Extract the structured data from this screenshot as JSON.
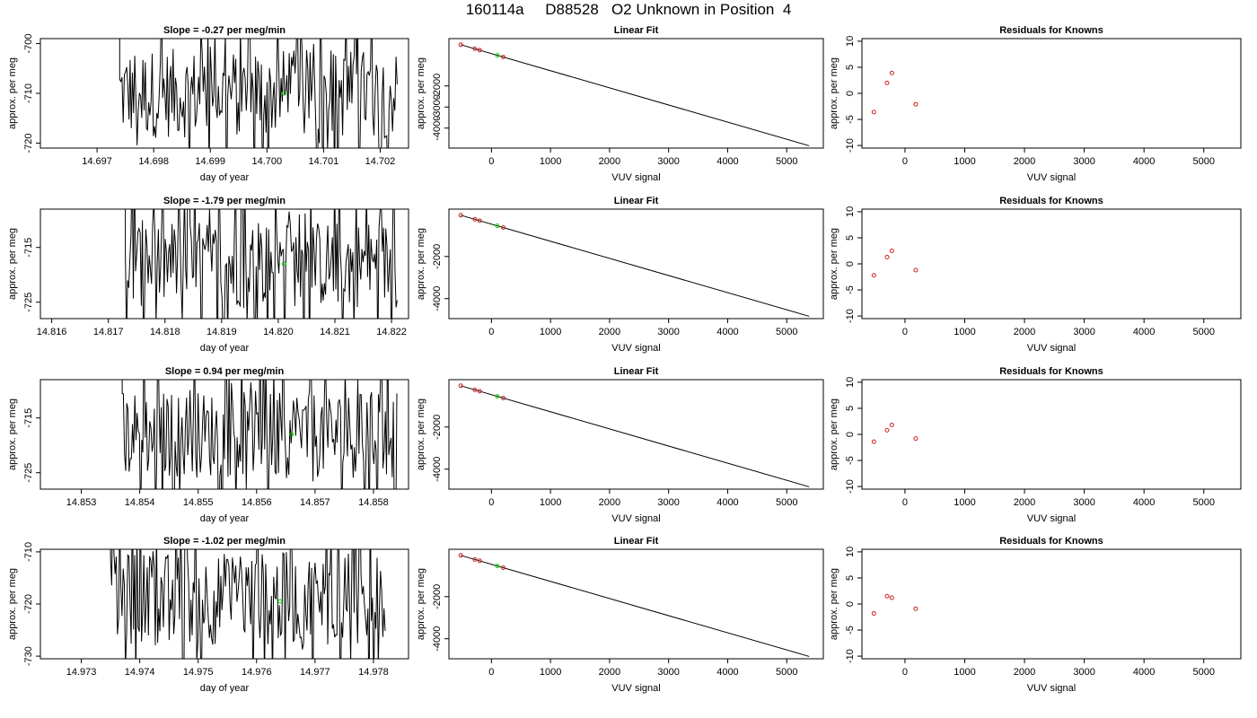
{
  "figure": {
    "title": "160114a     D88528   O2 Unknown in Position  4"
  },
  "colors": {
    "axis": "#000000",
    "line": "#000000",
    "unknown_point": "#00cc00",
    "known_point": "#cc2222"
  },
  "chart_data": [
    {
      "row": 1,
      "panel": "time-series",
      "type": "line",
      "title": "Slope =  -0.27  per meg/min",
      "xlabel": "day of year",
      "ylabel": "approx. per meg",
      "xlim": [
        14.696,
        14.7025
      ],
      "ylim": [
        -721,
        -699
      ],
      "xticks": [
        14.697,
        14.698,
        14.699,
        14.7,
        14.701,
        14.702
      ],
      "xtick_labels": [
        "14.697",
        "14.698",
        "14.699",
        "14.700",
        "14.701",
        "14.702"
      ],
      "yticks": [
        -700,
        -710,
        -720
      ],
      "ytick_labels": [
        "-700",
        "-710",
        "-720"
      ],
      "x_start": 14.6974,
      "x_end": 14.7023,
      "y_center": -710,
      "y_amplitude": 9,
      "unknown_point": {
        "x": 14.7003,
        "y": -710
      }
    },
    {
      "row": 1,
      "panel": "linear-fit",
      "type": "scatter",
      "title": "Linear Fit",
      "xlabel": "VUV signal",
      "ylabel": "approx. per meg",
      "xlim": [
        -720,
        5620
      ],
      "ylim": [
        -4950,
        250
      ],
      "xticks": [
        0,
        1000,
        2000,
        3000,
        4000,
        5000
      ],
      "xtick_labels": [
        "0",
        "1000",
        "2000",
        "3000",
        "4000",
        "5000"
      ],
      "yticks": [
        -2000,
        -3000,
        -4000
      ],
      "ytick_labels": [
        "-2000",
        "-3000",
        "-4000"
      ],
      "fit_line": {
        "x": [
          -520,
          5380
        ],
        "y": [
          -40,
          -4840
        ]
      },
      "knowns": [
        {
          "x": -520,
          "y": -40
        },
        {
          "x": -280,
          "y": -235
        },
        {
          "x": -200,
          "y": -300
        },
        {
          "x": 200,
          "y": -625
        }
      ],
      "unknown": {
        "x": 100,
        "y": -545
      }
    },
    {
      "row": 1,
      "panel": "residuals",
      "type": "scatter",
      "title": "Residuals for Knowns",
      "xlabel": "VUV signal",
      "ylabel": "approx. per meg",
      "xlim": [
        -720,
        5620
      ],
      "ylim": [
        -10.5,
        10.5
      ],
      "xticks": [
        0,
        1000,
        2000,
        3000,
        4000,
        5000
      ],
      "xtick_labels": [
        "0",
        "1000",
        "2000",
        "3000",
        "4000",
        "5000"
      ],
      "yticks": [
        10,
        5,
        0,
        -5,
        -10
      ],
      "ytick_labels": [
        "10",
        "5",
        "0",
        "-5",
        "-10"
      ],
      "points": [
        {
          "x": -520,
          "y": -3.6
        },
        {
          "x": -300,
          "y": 2.0
        },
        {
          "x": -220,
          "y": 3.9
        },
        {
          "x": 180,
          "y": -2.1
        }
      ]
    },
    {
      "row": 2,
      "panel": "time-series",
      "type": "line",
      "title": "Slope =  -1.79  per meg/min",
      "xlabel": "day of year",
      "ylabel": "approx. per meg",
      "xlim": [
        14.8158,
        14.8223
      ],
      "ylim": [
        -728,
        -708
      ],
      "xticks": [
        14.816,
        14.817,
        14.818,
        14.819,
        14.82,
        14.821,
        14.822
      ],
      "xtick_labels": [
        "14.816",
        "14.817",
        "14.818",
        "14.819",
        "14.820",
        "14.821",
        "14.822"
      ],
      "yticks": [
        -715,
        -725
      ],
      "ytick_labels": [
        "-715",
        "-725"
      ],
      "x_start": 14.8173,
      "x_end": 14.8221,
      "y_center": -718,
      "y_amplitude": 8,
      "unknown_point": {
        "x": 14.8201,
        "y": -718
      }
    },
    {
      "row": 2,
      "panel": "linear-fit",
      "type": "scatter",
      "title": "Linear Fit",
      "xlabel": "VUV signal",
      "ylabel": "approx. per meg",
      "xlim": [
        -720,
        5620
      ],
      "ylim": [
        -4950,
        250
      ],
      "xticks": [
        0,
        1000,
        2000,
        3000,
        4000,
        5000
      ],
      "xtick_labels": [
        "0",
        "1000",
        "2000",
        "3000",
        "4000",
        "5000"
      ],
      "yticks": [
        -2000,
        -4000
      ],
      "ytick_labels": [
        "-2000",
        "-4000"
      ],
      "fit_line": {
        "x": [
          -520,
          5380
        ],
        "y": [
          -40,
          -4840
        ]
      },
      "knowns": [
        {
          "x": -520,
          "y": -40
        },
        {
          "x": -280,
          "y": -235
        },
        {
          "x": -200,
          "y": -300
        },
        {
          "x": 200,
          "y": -625
        }
      ],
      "unknown": {
        "x": 100,
        "y": -545
      }
    },
    {
      "row": 2,
      "panel": "residuals",
      "type": "scatter",
      "title": "Residuals for Knowns",
      "xlabel": "VUV signal",
      "ylabel": "approx. per meg",
      "xlim": [
        -720,
        5620
      ],
      "ylim": [
        -10.5,
        10.5
      ],
      "xticks": [
        0,
        1000,
        2000,
        3000,
        4000,
        5000
      ],
      "xtick_labels": [
        "0",
        "1000",
        "2000",
        "3000",
        "4000",
        "5000"
      ],
      "yticks": [
        10,
        5,
        0,
        -5,
        -10
      ],
      "ytick_labels": [
        "10",
        "5",
        "0",
        "-5",
        "-10"
      ],
      "points": [
        {
          "x": -520,
          "y": -2.2
        },
        {
          "x": -300,
          "y": 1.3
        },
        {
          "x": -220,
          "y": 2.5
        },
        {
          "x": 180,
          "y": -1.2
        }
      ]
    },
    {
      "row": 3,
      "panel": "time-series",
      "type": "line",
      "title": "Slope =  0.94  per meg/min",
      "xlabel": "day of year",
      "ylabel": "approx. per meg",
      "xlim": [
        14.8523,
        14.8586
      ],
      "ylim": [
        -728,
        -708
      ],
      "xticks": [
        14.853,
        14.854,
        14.855,
        14.856,
        14.857,
        14.858
      ],
      "xtick_labels": [
        "14.853",
        "14.854",
        "14.855",
        "14.856",
        "14.857",
        "14.858"
      ],
      "yticks": [
        -715,
        -725
      ],
      "ytick_labels": [
        "-715",
        "-725"
      ],
      "x_start": 14.8537,
      "x_end": 14.8584,
      "y_center": -718,
      "y_amplitude": 8,
      "unknown_point": {
        "x": 14.8566,
        "y": -718
      }
    },
    {
      "row": 3,
      "panel": "linear-fit",
      "type": "scatter",
      "title": "Linear Fit",
      "xlabel": "VUV signal",
      "ylabel": "approx. per meg",
      "xlim": [
        -720,
        5620
      ],
      "ylim": [
        -4950,
        250
      ],
      "xticks": [
        0,
        1000,
        2000,
        3000,
        4000,
        5000
      ],
      "xtick_labels": [
        "0",
        "1000",
        "2000",
        "3000",
        "4000",
        "5000"
      ],
      "yticks": [
        -2000,
        -4000
      ],
      "ytick_labels": [
        "-2000",
        "-4000"
      ],
      "fit_line": {
        "x": [
          -520,
          5380
        ],
        "y": [
          -40,
          -4840
        ]
      },
      "knowns": [
        {
          "x": -520,
          "y": -40
        },
        {
          "x": -280,
          "y": -235
        },
        {
          "x": -200,
          "y": -300
        },
        {
          "x": 200,
          "y": -625
        }
      ],
      "unknown": {
        "x": 100,
        "y": -545
      }
    },
    {
      "row": 3,
      "panel": "residuals",
      "type": "scatter",
      "title": "Residuals for Knowns",
      "xlabel": "VUV signal",
      "ylabel": "approx. per meg",
      "xlim": [
        -720,
        5620
      ],
      "ylim": [
        -10.5,
        10.5
      ],
      "xticks": [
        0,
        1000,
        2000,
        3000,
        4000,
        5000
      ],
      "xtick_labels": [
        "0",
        "1000",
        "2000",
        "3000",
        "4000",
        "5000"
      ],
      "yticks": [
        10,
        5,
        0,
        -5,
        -10
      ],
      "ytick_labels": [
        "10",
        "5",
        "0",
        "-5",
        "-10"
      ],
      "points": [
        {
          "x": -520,
          "y": -1.4
        },
        {
          "x": -300,
          "y": 0.8
        },
        {
          "x": -220,
          "y": 1.8
        },
        {
          "x": 180,
          "y": -0.8
        }
      ]
    },
    {
      "row": 4,
      "panel": "time-series",
      "type": "line",
      "title": "Slope =  -1.02  per meg/min",
      "xlabel": "day of year",
      "ylabel": "approx. per meg",
      "xlim": [
        14.9723,
        14.9786
      ],
      "ylim": [
        -730.5,
        -709.5
      ],
      "xticks": [
        14.973,
        14.974,
        14.975,
        14.976,
        14.977,
        14.978
      ],
      "xtick_labels": [
        "14.973",
        "14.974",
        "14.975",
        "14.976",
        "14.977",
        "14.978"
      ],
      "yticks": [
        -710,
        -720,
        -730
      ],
      "ytick_labels": [
        "-710",
        "-720",
        "-730"
      ],
      "x_start": 14.9735,
      "x_end": 14.9782,
      "y_center": -719,
      "y_amplitude": 9,
      "unknown_point": {
        "x": 14.9764,
        "y": -719.5
      }
    },
    {
      "row": 4,
      "panel": "linear-fit",
      "type": "scatter",
      "title": "Linear Fit",
      "xlabel": "VUV signal",
      "ylabel": "approx. per meg",
      "xlim": [
        -720,
        5620
      ],
      "ylim": [
        -4950,
        250
      ],
      "xticks": [
        0,
        1000,
        2000,
        3000,
        4000,
        5000
      ],
      "xtick_labels": [
        "0",
        "1000",
        "2000",
        "3000",
        "4000",
        "5000"
      ],
      "yticks": [
        -2000,
        -4000
      ],
      "ytick_labels": [
        "-2000",
        "-4000"
      ],
      "fit_line": {
        "x": [
          -520,
          5380
        ],
        "y": [
          -40,
          -4840
        ]
      },
      "knowns": [
        {
          "x": -520,
          "y": -40
        },
        {
          "x": -280,
          "y": -235
        },
        {
          "x": -200,
          "y": -300
        },
        {
          "x": 200,
          "y": -625
        }
      ],
      "unknown": {
        "x": 100,
        "y": -545
      }
    },
    {
      "row": 4,
      "panel": "residuals",
      "type": "scatter",
      "title": "Residuals for Knowns",
      "xlabel": "VUV signal",
      "ylabel": "approx. per meg",
      "xlim": [
        -720,
        5620
      ],
      "ylim": [
        -10.5,
        10.5
      ],
      "xticks": [
        0,
        1000,
        2000,
        3000,
        4000,
        5000
      ],
      "xtick_labels": [
        "0",
        "1000",
        "2000",
        "3000",
        "4000",
        "5000"
      ],
      "yticks": [
        10,
        5,
        0,
        -5,
        -10
      ],
      "ytick_labels": [
        "10",
        "5",
        "0",
        "-5",
        "-10"
      ],
      "points": [
        {
          "x": -520,
          "y": -1.8
        },
        {
          "x": -300,
          "y": 1.5
        },
        {
          "x": -220,
          "y": 1.2
        },
        {
          "x": 180,
          "y": -0.9
        }
      ]
    }
  ]
}
